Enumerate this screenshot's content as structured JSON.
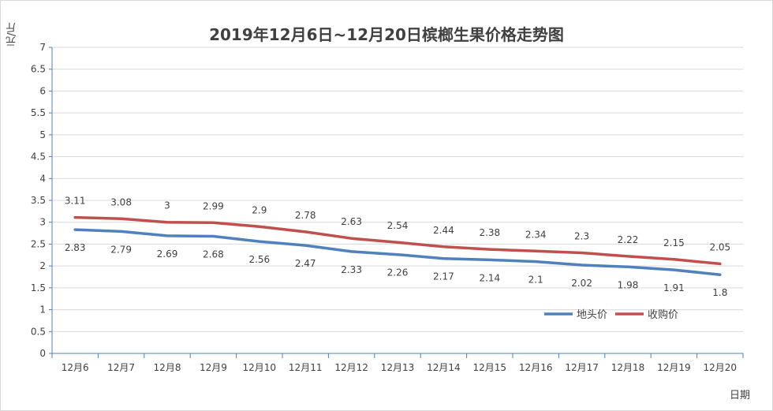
{
  "chart_data": {
    "type": "line",
    "title": "2019年12月6日~12月20日槟榔生果价格走势图",
    "ylabel": "元/斤",
    "xlabel": "日期",
    "categories": [
      "12月6",
      "12月7",
      "12月8",
      "12月9",
      "12月10",
      "12月11",
      "12月12",
      "12月13",
      "12月14",
      "12月15",
      "12月16",
      "12月17",
      "12月18",
      "12月19",
      "12月20"
    ],
    "ylim": [
      0,
      7
    ],
    "yticks": [
      "0",
      "0.5",
      "1",
      "1.5",
      "2",
      "2.5",
      "3",
      "3.5",
      "4",
      "4.5",
      "5",
      "5.5",
      "6",
      "6.5",
      "7"
    ],
    "grid": true,
    "legend_position": "bottom-right",
    "series": [
      {
        "name": "地头价",
        "color": "#4f81bd",
        "label_position": "below",
        "values": [
          2.83,
          2.79,
          2.69,
          2.68,
          2.56,
          2.47,
          2.33,
          2.26,
          2.17,
          2.14,
          2.1,
          2.02,
          1.98,
          1.91,
          1.8
        ],
        "labels": [
          "2.83",
          "2.79",
          "2.69",
          "2.68",
          "2.56",
          "2.47",
          "2.33",
          "2.26",
          "2.17",
          "2.14",
          "2.1",
          "2.02",
          "1.98",
          "1.91",
          "1.8"
        ]
      },
      {
        "name": "收购价",
        "color": "#c0504d",
        "label_position": "above",
        "values": [
          3.11,
          3.08,
          3,
          2.99,
          2.9,
          2.78,
          2.63,
          2.54,
          2.44,
          2.38,
          2.34,
          2.3,
          2.22,
          2.15,
          2.05
        ],
        "labels": [
          "3.11",
          "3.08",
          "3",
          "2.99",
          "2.9",
          "2.78",
          "2.63",
          "2.54",
          "2.44",
          "2.38",
          "2.34",
          "2.3",
          "2.22",
          "2.15",
          "2.05"
        ]
      }
    ]
  }
}
